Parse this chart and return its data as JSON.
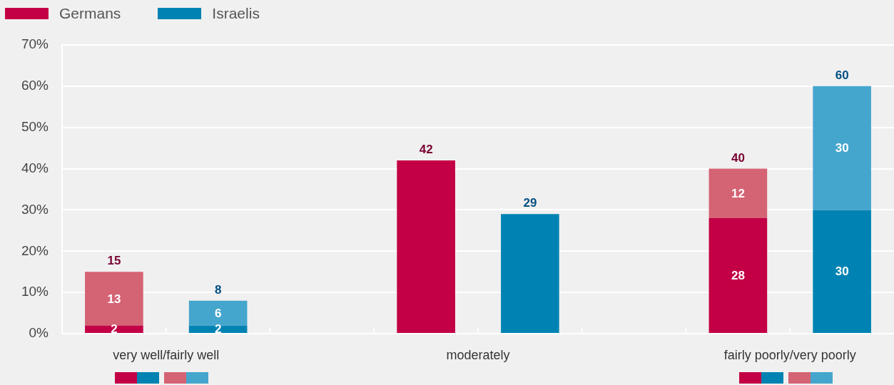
{
  "chart_data": {
    "type": "bar",
    "stacked": true,
    "categories": [
      null,
      "very well/fairly well",
      null,
      null,
      null,
      null,
      null,
      "moderately",
      null,
      null,
      null,
      null,
      null,
      "fairly poorly/very poorly",
      null
    ],
    "series": [
      {
        "name": "Germans",
        "color": "#c30045",
        "values": [
          2,
          null,
          null,
          null,
          null,
          null,
          42,
          null,
          null,
          null,
          null,
          null,
          28,
          null,
          null
        ],
        "value_labels": [
          "2",
          null,
          null,
          null,
          null,
          null,
          null,
          null,
          null,
          null,
          null,
          null,
          "28",
          null,
          null
        ]
      },
      {
        "color": "#d46374",
        "values": [
          13,
          null,
          null,
          null,
          null,
          null,
          null,
          null,
          null,
          null,
          null,
          null,
          12,
          null,
          null
        ],
        "value_labels": [
          "13",
          null,
          null,
          null,
          null,
          null,
          null,
          null,
          null,
          null,
          null,
          null,
          "12",
          null,
          null
        ]
      },
      {
        "name": "Israelis",
        "color": "#0083b3",
        "values": [
          null,
          null,
          2,
          null,
          null,
          null,
          null,
          null,
          29,
          null,
          null,
          null,
          null,
          null,
          30
        ],
        "value_labels": [
          null,
          null,
          "2",
          null,
          null,
          null,
          null,
          null,
          null,
          null,
          null,
          null,
          null,
          null,
          "30"
        ]
      },
      {
        "color": "#45a6cd",
        "values": [
          null,
          null,
          6,
          null,
          null,
          null,
          null,
          null,
          null,
          null,
          null,
          null,
          null,
          null,
          30
        ],
        "value_labels": [
          null,
          null,
          "6",
          null,
          null,
          null,
          null,
          null,
          null,
          null,
          null,
          null,
          null,
          null,
          "30"
        ]
      }
    ],
    "totals": [
      "15",
      null,
      "8",
      null,
      null,
      null,
      "42",
      null,
      "29",
      null,
      null,
      null,
      "40",
      null,
      "60"
    ],
    "ylim": [
      0,
      70
    ],
    "yticks": [
      {
        "value": 0,
        "label": "0%"
      },
      {
        "value": 10,
        "label": "10%"
      },
      {
        "value": 20,
        "label": "20%"
      },
      {
        "value": 30,
        "label": "30%"
      },
      {
        "value": 40,
        "label": "40%"
      },
      {
        "value": 50,
        "label": "50%"
      },
      {
        "value": 60,
        "label": "60%"
      },
      {
        "value": 70,
        "label": "70%"
      }
    ],
    "grid": "y",
    "legend": "top left"
  }
}
